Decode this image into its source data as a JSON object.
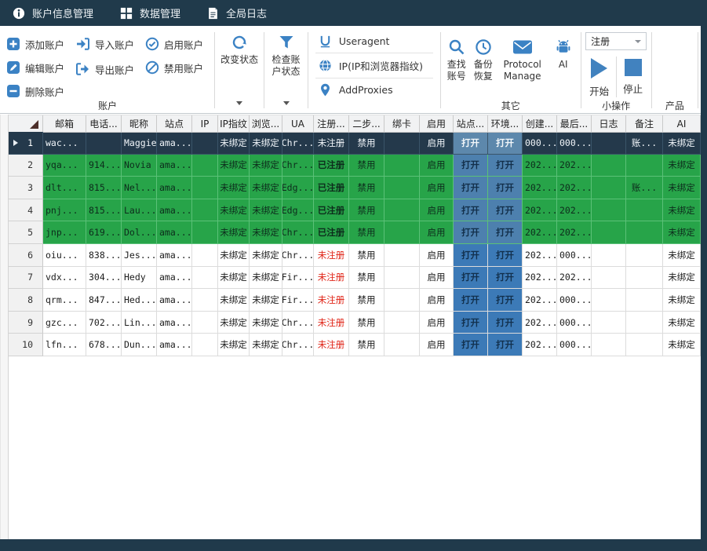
{
  "menubar": {
    "items": [
      {
        "icon": "info-icon",
        "label": "账户信息管理"
      },
      {
        "icon": "grid-icon",
        "label": "数据管理"
      },
      {
        "icon": "document-icon",
        "label": "全局日志"
      }
    ]
  },
  "toolbar": {
    "account": {
      "add": "添加账户",
      "edit": "编辑账户",
      "remove": "删除账户",
      "import": "导入账户",
      "export": "导出账户",
      "enable": "启用账户",
      "disable": "禁用账户",
      "group_label": "账户"
    },
    "change_status": "改变状态",
    "check_status": "检查账户状态",
    "useragent": "Useragent",
    "ip_fingerprint": "IP(IP和浏览器指纹)",
    "add_proxies": "AddProxies",
    "find_account": "查找账号",
    "backup_restore": "备份恢复",
    "protocol_manage": "Protocol Manage",
    "ai": "AI",
    "other_group_label": "其它",
    "register_combo_value": "注册",
    "start": "开始",
    "stop": "停止",
    "small_ops_label": "小操作",
    "product_label": "产品"
  },
  "colors": {
    "titlebar": "#203a4b",
    "green_row": "#27a449",
    "selected_row": "#24394b",
    "open_button": "#3c7ab7",
    "unregistered_red": "#e02417",
    "icon_blue": "#3b82c4"
  },
  "table": {
    "columns": [
      "",
      "邮箱",
      "电话...",
      "昵称",
      "站点",
      "IP",
      "IP指纹",
      "浏览...",
      "UA",
      "注册...",
      "二步...",
      "绑卡",
      "启用",
      "站点...",
      "环境...",
      "创建...",
      "最后...",
      "日志",
      "备注",
      "AI"
    ],
    "keys": [
      "num",
      "email",
      "phone",
      "nickname",
      "site",
      "ip",
      "ip_fingerprint",
      "browser",
      "ua",
      "register",
      "twostep",
      "bindcard",
      "enabled",
      "site_open",
      "env_open",
      "created",
      "last",
      "log",
      "note",
      "ai"
    ],
    "rows": [
      {
        "state": "sel",
        "num": "1",
        "email": "wac...",
        "phone": "",
        "nickname": "Maggie",
        "site": "ama...",
        "ip": "",
        "ip_fingerprint": "未绑定",
        "browser": "未绑定",
        "ua": "Chr...",
        "register": "未注册",
        "twostep": "禁用",
        "bindcard": "",
        "enabled": "启用",
        "site_open": "打开",
        "env_open": "打开",
        "created": "000...",
        "last": "000...",
        "log": "",
        "note": "账...",
        "ai": "未绑定"
      },
      {
        "state": "green",
        "num": "2",
        "email": "yqa...",
        "phone": "914...",
        "nickname": "Novia",
        "site": "ama...",
        "ip": "",
        "ip_fingerprint": "未绑定",
        "browser": "未绑定",
        "ua": "Chr...",
        "register": "已注册",
        "twostep": "禁用",
        "bindcard": "",
        "enabled": "启用",
        "site_open": "打开",
        "env_open": "打开",
        "created": "202...",
        "last": "202...",
        "log": "",
        "note": "",
        "ai": "未绑定"
      },
      {
        "state": "green",
        "num": "3",
        "email": "dlt...",
        "phone": "815...",
        "nickname": "Nel...",
        "site": "ama...",
        "ip": "",
        "ip_fingerprint": "未绑定",
        "browser": "未绑定",
        "ua": "Edg...",
        "register": "已注册",
        "twostep": "禁用",
        "bindcard": "",
        "enabled": "启用",
        "site_open": "打开",
        "env_open": "打开",
        "created": "202...",
        "last": "202...",
        "log": "",
        "note": "账...",
        "ai": "未绑定"
      },
      {
        "state": "green",
        "num": "4",
        "email": "pnj...",
        "phone": "815...",
        "nickname": "Lau...",
        "site": "ama...",
        "ip": "",
        "ip_fingerprint": "未绑定",
        "browser": "未绑定",
        "ua": "Edg...",
        "register": "已注册",
        "twostep": "禁用",
        "bindcard": "",
        "enabled": "启用",
        "site_open": "打开",
        "env_open": "打开",
        "created": "202...",
        "last": "202...",
        "log": "",
        "note": "",
        "ai": "未绑定"
      },
      {
        "state": "green",
        "num": "5",
        "email": "jnp...",
        "phone": "619...",
        "nickname": "Dol...",
        "site": "ama...",
        "ip": "",
        "ip_fingerprint": "未绑定",
        "browser": "未绑定",
        "ua": "Chr...",
        "register": "已注册",
        "twostep": "禁用",
        "bindcard": "",
        "enabled": "启用",
        "site_open": "打开",
        "env_open": "打开",
        "created": "202...",
        "last": "202...",
        "log": "",
        "note": "",
        "ai": "未绑定"
      },
      {
        "state": "normal",
        "num": "6",
        "email": "oiu...",
        "phone": "838...",
        "nickname": "Jes...",
        "site": "ama...",
        "ip": "",
        "ip_fingerprint": "未绑定",
        "browser": "未绑定",
        "ua": "Chr...",
        "register": "未注册",
        "twostep": "禁用",
        "bindcard": "",
        "enabled": "启用",
        "site_open": "打开",
        "env_open": "打开",
        "created": "202...",
        "last": "000...",
        "log": "",
        "note": "",
        "ai": "未绑定"
      },
      {
        "state": "normal",
        "num": "7",
        "email": "vdx...",
        "phone": "304...",
        "nickname": "Hedy",
        "site": "ama...",
        "ip": "",
        "ip_fingerprint": "未绑定",
        "browser": "未绑定",
        "ua": "Fir...",
        "register": "未注册",
        "twostep": "禁用",
        "bindcard": "",
        "enabled": "启用",
        "site_open": "打开",
        "env_open": "打开",
        "created": "202...",
        "last": "202...",
        "log": "",
        "note": "",
        "ai": "未绑定"
      },
      {
        "state": "normal",
        "num": "8",
        "email": "qrm...",
        "phone": "847...",
        "nickname": "Hed...",
        "site": "ama...",
        "ip": "",
        "ip_fingerprint": "未绑定",
        "browser": "未绑定",
        "ua": "Fir...",
        "register": "未注册",
        "twostep": "禁用",
        "bindcard": "",
        "enabled": "启用",
        "site_open": "打开",
        "env_open": "打开",
        "created": "202...",
        "last": "000...",
        "log": "",
        "note": "",
        "ai": "未绑定"
      },
      {
        "state": "normal",
        "num": "9",
        "email": "gzc...",
        "phone": "702...",
        "nickname": "Lin...",
        "site": "ama...",
        "ip": "",
        "ip_fingerprint": "未绑定",
        "browser": "未绑定",
        "ua": "Chr...",
        "register": "未注册",
        "twostep": "禁用",
        "bindcard": "",
        "enabled": "启用",
        "site_open": "打开",
        "env_open": "打开",
        "created": "202...",
        "last": "000...",
        "log": "",
        "note": "",
        "ai": "未绑定"
      },
      {
        "state": "normal",
        "num": "10",
        "email": "lfn...",
        "phone": "678...",
        "nickname": "Dun...",
        "site": "ama...",
        "ip": "",
        "ip_fingerprint": "未绑定",
        "browser": "未绑定",
        "ua": "Chr...",
        "register": "未注册",
        "twostep": "禁用",
        "bindcard": "",
        "enabled": "启用",
        "site_open": "打开",
        "env_open": "打开",
        "created": "202...",
        "last": "000...",
        "log": "",
        "note": "",
        "ai": "未绑定"
      }
    ]
  }
}
